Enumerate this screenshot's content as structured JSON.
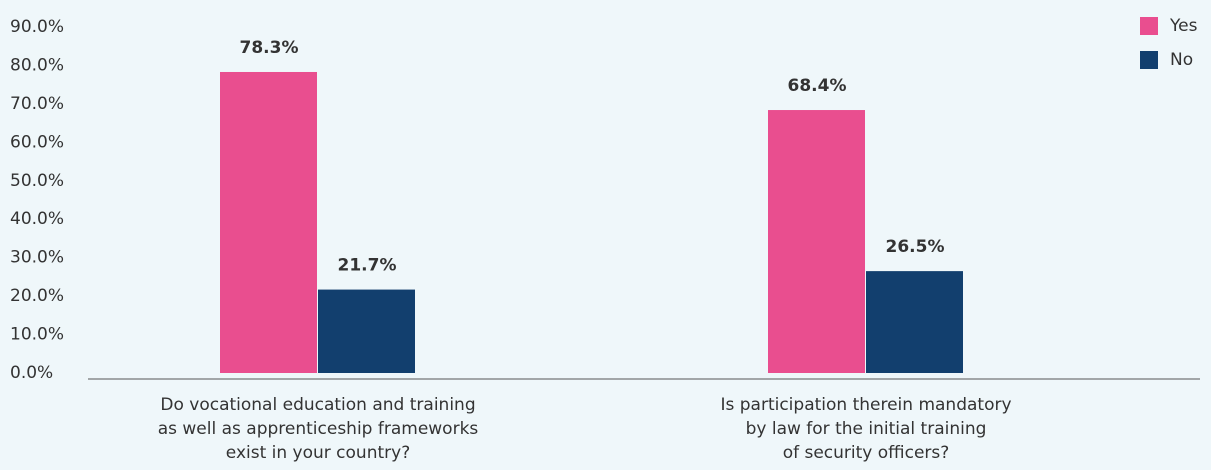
{
  "chart_data": {
    "type": "bar",
    "categories": [
      "Do vocational education and training\nas well as apprenticeship frameworks\nexist in your country?",
      "Is participation therein mandatory\nby law for the initial training\nof security officers?"
    ],
    "series": [
      {
        "name": "Yes",
        "color": "#e94e8f",
        "values": [
          78.3,
          68.4
        ],
        "value_labels": [
          "78.3%",
          "68.4%"
        ]
      },
      {
        "name": "No",
        "color": "#123f6e",
        "values": [
          21.7,
          26.5
        ],
        "value_labels": [
          "21.7%",
          "26.5%"
        ]
      }
    ],
    "ylim": [
      0,
      90
    ],
    "yticks": [
      {
        "value": 0,
        "label": "0.0%"
      },
      {
        "value": 10,
        "label": "10.0%"
      },
      {
        "value": 20,
        "label": "20.0%"
      },
      {
        "value": 30,
        "label": "30.0%"
      },
      {
        "value": 40,
        "label": "40.0%"
      },
      {
        "value": 50,
        "label": "50.0%"
      },
      {
        "value": 60,
        "label": "60.0%"
      },
      {
        "value": 70,
        "label": "70.0%"
      },
      {
        "value": 80,
        "label": "80.0%"
      },
      {
        "value": 90,
        "label": "90.0%"
      }
    ],
    "legend": "top-right"
  }
}
